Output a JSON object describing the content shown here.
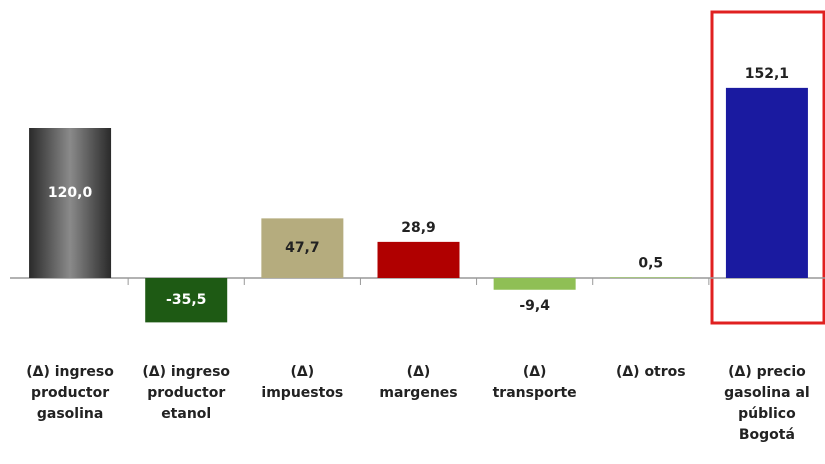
{
  "chart_data": {
    "type": "bar",
    "categories": [
      [
        "(Δ) ingreso",
        "productor",
        "gasolina"
      ],
      [
        "(Δ) ingreso",
        "productor",
        "etanol"
      ],
      [
        "(Δ)",
        "impuestos"
      ],
      [
        "(Δ)",
        "margenes"
      ],
      [
        "(Δ)",
        "transporte"
      ],
      [
        "(Δ) otros"
      ],
      [
        "(Δ) precio",
        "gasolina al",
        "público",
        "Bogotá"
      ]
    ],
    "values": [
      120.0,
      -35.5,
      47.7,
      28.9,
      -9.4,
      0.5,
      152.1
    ],
    "value_labels": [
      "120,0",
      "-35,5",
      "47,7",
      "28,9",
      "-9,4",
      "0,5",
      "152,1"
    ],
    "colors": [
      "#5a5a5a",
      "#1e5a14",
      "#b5ac7e",
      "#b00000",
      "#8fbf55",
      "#8fbf55",
      "#1a1aa0"
    ],
    "ylim": [
      -60,
      180
    ]
  }
}
